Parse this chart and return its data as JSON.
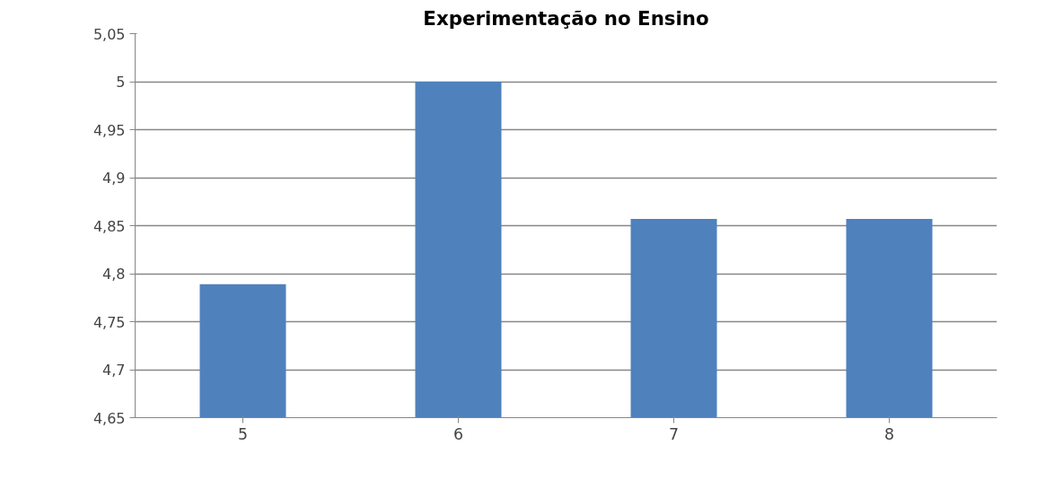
{
  "chart_data": {
    "type": "bar",
    "title": "Experimentação no Ensino",
    "categories": [
      "5",
      "6",
      "7",
      "8"
    ],
    "values": [
      4.789,
      5.0,
      4.857,
      4.857
    ],
    "color": "#4f81bd",
    "ylim": [
      4.65,
      5.05
    ],
    "yticks": [
      {
        "value": 4.65,
        "label": "4,65"
      },
      {
        "value": 4.7,
        "label": "4,7"
      },
      {
        "value": 4.75,
        "label": "4,75"
      },
      {
        "value": 4.8,
        "label": "4,8"
      },
      {
        "value": 4.85,
        "label": "4,85"
      },
      {
        "value": 4.9,
        "label": "4,9"
      },
      {
        "value": 4.95,
        "label": "4,95"
      },
      {
        "value": 5.0,
        "label": "5"
      },
      {
        "value": 5.05,
        "label": "5,05"
      }
    ],
    "grid": "y"
  }
}
